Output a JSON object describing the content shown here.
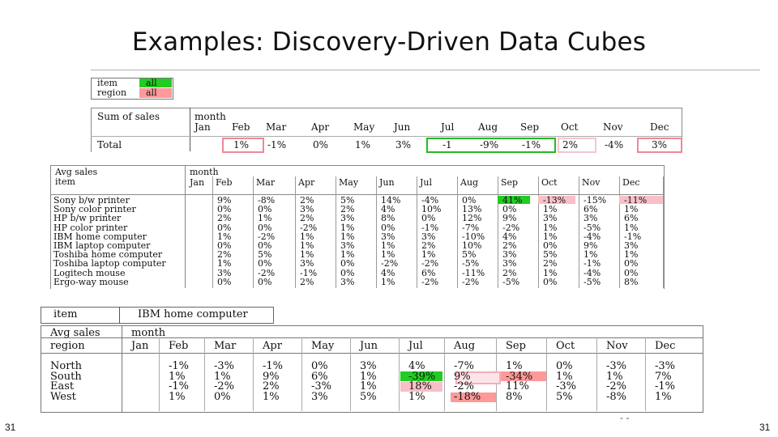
{
  "title": "Examples: Discovery-Driven Data Cubes",
  "page_number": "31",
  "page_number_right": "31",
  "footer_mark": "- -",
  "top_selector": {
    "rows": [
      {
        "label": "item",
        "value": "all"
      },
      {
        "label": "region",
        "value": "all"
      }
    ]
  },
  "sum_table": {
    "corner": "Sum of sales",
    "dimension": "month",
    "row_label": "Total",
    "months": [
      "Jan",
      "Feb",
      "Mar",
      "Apr",
      "May",
      "Jun",
      "Jul",
      "Aug",
      "Sep",
      "Oct",
      "Nov",
      "Dec"
    ],
    "values": [
      "",
      "1%",
      "-1%",
      "0%",
      "1%",
      "3%",
      "-1",
      "-9%",
      "-1%",
      "2%",
      "-4%",
      "3%"
    ]
  },
  "item_table": {
    "corner": "Avg sales",
    "dimension": "month",
    "row_header": "item",
    "months": [
      "Jan",
      "Feb",
      "Mar",
      "Apr",
      "May",
      "Jun",
      "Jul",
      "Aug",
      "Sep",
      "Oct",
      "Nov",
      "Dec"
    ],
    "rows": [
      {
        "name": "Sony b/w printer",
        "values": [
          "",
          "9%",
          "-8%",
          "2%",
          "5%",
          "14%",
          "-4%",
          "0%",
          "41%",
          "-13%",
          "-15%",
          "-11%"
        ]
      },
      {
        "name": "Sony color printer",
        "values": [
          "",
          "0%",
          "0%",
          "3%",
          "2%",
          "4%",
          "10%",
          "13%",
          "0%",
          "1%",
          "6%",
          "1%"
        ]
      },
      {
        "name": "HP b/w printer",
        "values": [
          "",
          "2%",
          "1%",
          "2%",
          "3%",
          "8%",
          "0%",
          "12%",
          "9%",
          "3%",
          "3%",
          "6%"
        ]
      },
      {
        "name": "HP color printer",
        "values": [
          "",
          "0%",
          "0%",
          "-2%",
          "1%",
          "0%",
          "-1%",
          "-7%",
          "-2%",
          "1%",
          "-5%",
          "1%"
        ]
      },
      {
        "name": "IBM home computer",
        "values": [
          "",
          "1%",
          "-2%",
          "1%",
          "1%",
          "3%",
          "3%",
          "-10%",
          "4%",
          "1%",
          "-4%",
          "-1%"
        ]
      },
      {
        "name": "IBM laptop computer",
        "values": [
          "",
          "0%",
          "0%",
          "1%",
          "3%",
          "1%",
          "2%",
          "10%",
          "2%",
          "0%",
          "9%",
          "3%"
        ]
      },
      {
        "name": "Toshiba home computer",
        "values": [
          "",
          "2%",
          "5%",
          "1%",
          "1%",
          "1%",
          "1%",
          "5%",
          "3%",
          "5%",
          "1%",
          "1%"
        ]
      },
      {
        "name": "Toshiba laptop computer",
        "values": [
          "",
          "1%",
          "0%",
          "3%",
          "0%",
          "-2%",
          "-2%",
          "-5%",
          "3%",
          "2%",
          "-1%",
          "0%"
        ]
      },
      {
        "name": "Logitech mouse",
        "values": [
          "",
          "3%",
          "-2%",
          "-1%",
          "0%",
          "4%",
          "6%",
          "-11%",
          "2%",
          "1%",
          "-4%",
          "0%"
        ]
      },
      {
        "name": "Ergo-way mouse",
        "values": [
          "",
          "0%",
          "0%",
          "2%",
          "3%",
          "1%",
          "-2%",
          "-2%",
          "-5%",
          "0%",
          "-5%",
          "8%"
        ]
      }
    ]
  },
  "region_selector": {
    "label": "item",
    "value": "IBM home computer"
  },
  "region_table": {
    "corner": "Avg sales",
    "dimension": "month",
    "row_header": "region",
    "months": [
      "Jan",
      "Feb",
      "Mar",
      "Apr",
      "May",
      "Jun",
      "Jul",
      "Aug",
      "Sep",
      "Oct",
      "Nov",
      "Dec"
    ],
    "rows": [
      {
        "name": "North",
        "values": [
          "",
          "-1%",
          "-3%",
          "-1%",
          "0%",
          "3%",
          "4%",
          "-7%",
          "1%",
          "0%",
          "-3%",
          "-3%"
        ]
      },
      {
        "name": "South",
        "values": [
          "",
          "1%",
          "1%",
          "9%",
          "6%",
          "1%",
          "-39%",
          "9%",
          "-34%",
          "1%",
          "1%",
          "7%"
        ]
      },
      {
        "name": "East",
        "values": [
          "",
          "-1%",
          "-2%",
          "2%",
          "-3%",
          "1%",
          "18%",
          "-2%",
          "11%",
          "-3%",
          "-2%",
          "-1%"
        ]
      },
      {
        "name": "West",
        "values": [
          "",
          "1%",
          "0%",
          "1%",
          "3%",
          "5%",
          "1%",
          "-18%",
          "8%",
          "5%",
          "-8%",
          "1%"
        ]
      }
    ]
  }
}
